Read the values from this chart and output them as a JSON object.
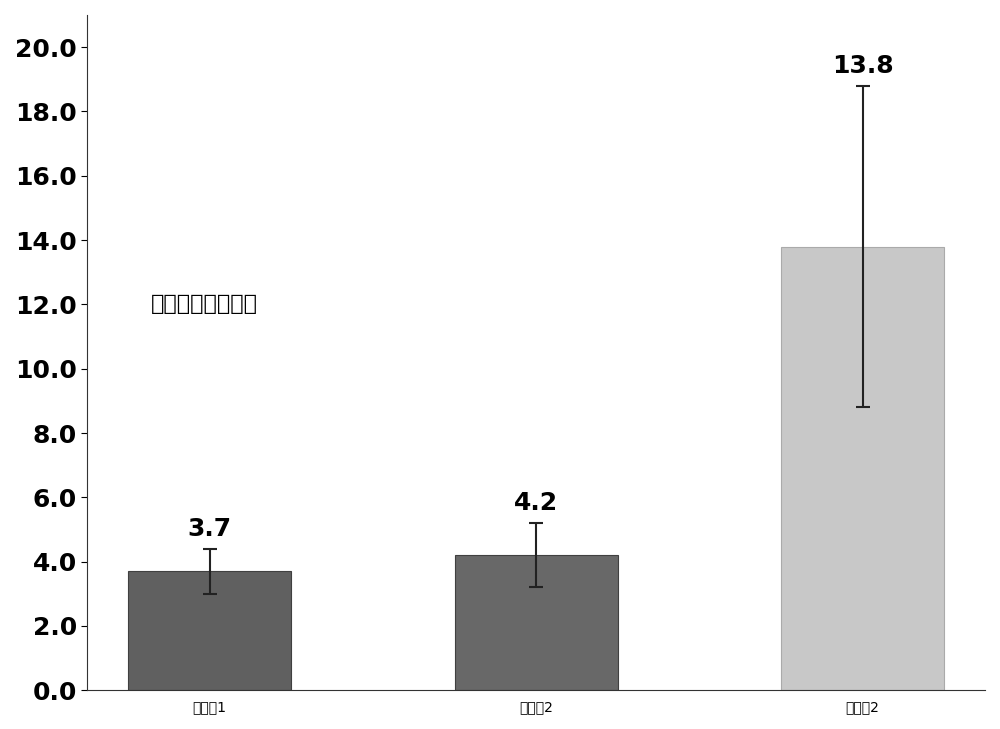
{
  "categories": [
    "实施奙1",
    "实施奙2",
    "比较奙2"
  ],
  "values": [
    3.7,
    4.2,
    13.8
  ],
  "errors": [
    0.7,
    1.0,
    5.0
  ],
  "bar_colors": [
    "#606060",
    "#686868",
    "#c8c8c8"
  ],
  "bar_edgecolors": [
    "#404040",
    "#404040",
    "#aaaaaa"
  ],
  "ylabel": "重建时间（分钟）",
  "ylim": [
    0,
    21.0
  ],
  "yticks": [
    0.0,
    2.0,
    4.0,
    6.0,
    8.0,
    10.0,
    12.0,
    14.0,
    16.0,
    18.0,
    20.0
  ],
  "value_labels": [
    "3.7",
    "4.2",
    "13.8"
  ],
  "background_color": "#ffffff",
  "label_fontsize": 18,
  "tick_fontsize": 18,
  "value_label_fontsize": 18,
  "ylabel_fontsize": 16,
  "bar_width": 0.5
}
